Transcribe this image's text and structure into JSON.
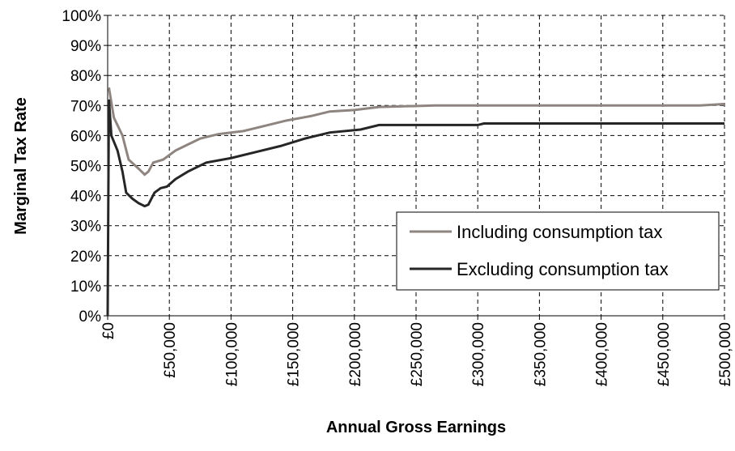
{
  "chart_data": {
    "type": "line",
    "x_label": "Annual Gross Earnings",
    "y_label": "Marginal Tax Rate",
    "xlim": [
      0,
      500000
    ],
    "xticks": [
      {
        "value": 0,
        "label": "£0"
      },
      {
        "value": 50000,
        "label": "£50,000"
      },
      {
        "value": 100000,
        "label": "£100,000"
      },
      {
        "value": 150000,
        "label": "£150,000"
      },
      {
        "value": 200000,
        "label": "£200,000"
      },
      {
        "value": 250000,
        "label": "£250,000"
      },
      {
        "value": 300000,
        "label": "£300,000"
      },
      {
        "value": 350000,
        "label": "£350,000"
      },
      {
        "value": 400000,
        "label": "£400,000"
      },
      {
        "value": 450000,
        "label": "£450,000"
      },
      {
        "value": 500000,
        "label": "£500,000"
      }
    ],
    "ylim": [
      0,
      100
    ],
    "yticks": [
      {
        "value": 0,
        "label": "0%"
      },
      {
        "value": 10,
        "label": "10%"
      },
      {
        "value": 20,
        "label": "20%"
      },
      {
        "value": 30,
        "label": "30%"
      },
      {
        "value": 40,
        "label": "40%"
      },
      {
        "value": 50,
        "label": "50%"
      },
      {
        "value": 60,
        "label": "60%"
      },
      {
        "value": 70,
        "label": "70%"
      },
      {
        "value": 80,
        "label": "80%"
      },
      {
        "value": 90,
        "label": "90%"
      },
      {
        "value": 100,
        "label": "100%"
      }
    ],
    "grid": true,
    "legend": "right",
    "series": [
      {
        "name": "Including consumption tax",
        "color": "#8e8480",
        "x": [
          1000,
          5000,
          12000,
          17000,
          25000,
          30000,
          33000,
          37000,
          45000,
          55000,
          65000,
          75000,
          90000,
          110000,
          125000,
          145000,
          165000,
          180000,
          200000,
          220000,
          265000,
          480000,
          500000
        ],
        "values": [
          76,
          66,
          60,
          52,
          49,
          47,
          48,
          51,
          52,
          55,
          57,
          59,
          60.5,
          61.5,
          63,
          65,
          66.5,
          68,
          68.5,
          69.5,
          70,
          70,
          70.5
        ]
      },
      {
        "name": "Excluding consumption tax",
        "color": "#262626",
        "x": [
          0,
          1000,
          3000,
          8000,
          12000,
          15000,
          20000,
          25000,
          30000,
          33000,
          38000,
          43000,
          48000,
          55000,
          65000,
          80000,
          100000,
          120000,
          140000,
          160000,
          180000,
          205000,
          220000,
          300000,
          305000,
          500000
        ],
        "values": [
          0,
          72,
          60,
          55,
          48,
          41,
          39,
          37.5,
          36.5,
          37,
          41,
          42.5,
          43,
          45.5,
          48,
          51,
          52.5,
          54.5,
          56.5,
          59,
          61,
          62,
          63.5,
          63.5,
          64,
          64
        ]
      }
    ]
  }
}
